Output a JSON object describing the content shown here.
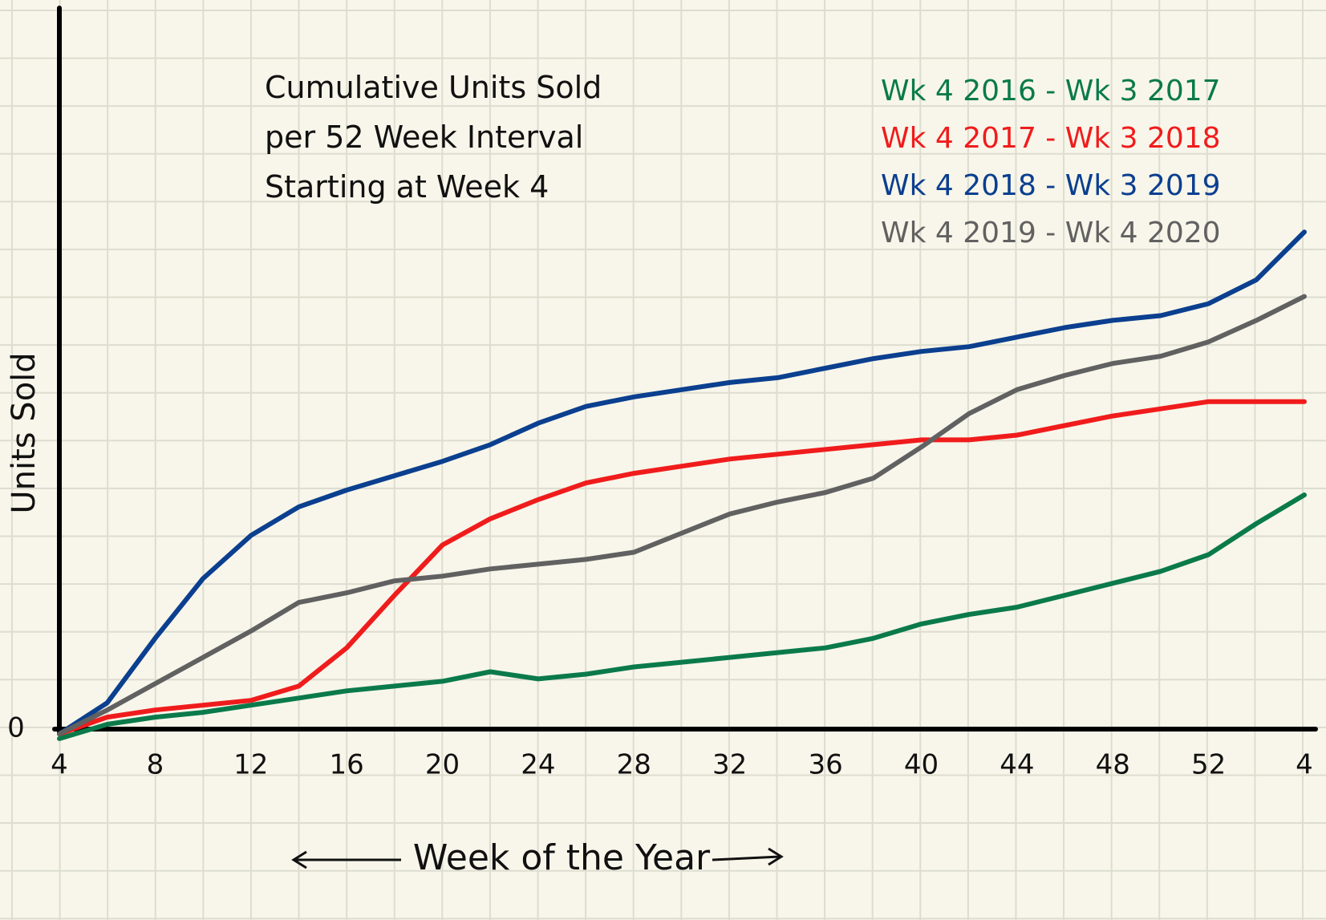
{
  "chart_data": {
    "type": "line",
    "title": "Cumulative Units Sold per 52 Week Interval Starting at Week 4",
    "x_label": "Week of the Year",
    "y_label": "Units Sold",
    "categories": [
      "4",
      null,
      "8",
      null,
      "12",
      null,
      "16",
      null,
      "20",
      null,
      "24",
      null,
      "28",
      null,
      "32",
      null,
      "36",
      null,
      "40",
      null,
      "44",
      null,
      "48",
      null,
      "52",
      null,
      "4"
    ],
    "ylim": [
      0,
      15
    ],
    "yticks": [
      0
    ],
    "series": [
      {
        "name": "Wk 4 2016 - Wk 3 2017",
        "color": "#0b7a4b",
        "values": [
          -0.2,
          0.1,
          0.25,
          0.35,
          0.5,
          0.65,
          0.8,
          0.9,
          1.0,
          1.2,
          1.05,
          1.15,
          1.3,
          1.4,
          1.5,
          1.6,
          1.7,
          1.9,
          2.2,
          2.4,
          2.55,
          2.8,
          3.05,
          3.3,
          3.65,
          4.3,
          4.9
        ]
      },
      {
        "name": "Wk 4 2017 - Wk 3 2018",
        "color": "#f01c1c",
        "values": [
          -0.1,
          0.25,
          0.4,
          0.5,
          0.6,
          0.9,
          1.7,
          2.8,
          3.85,
          4.4,
          4.8,
          5.15,
          5.35,
          5.5,
          5.65,
          5.75,
          5.85,
          5.95,
          6.05,
          6.05,
          6.15,
          6.35,
          6.55,
          6.7,
          6.85,
          6.85,
          6.85
        ]
      },
      {
        "name": "Wk 4 2018 - Wk 3 2019",
        "color": "#0b3f8f",
        "values": [
          -0.1,
          0.55,
          1.9,
          3.15,
          4.05,
          4.65,
          5.0,
          5.3,
          5.6,
          5.95,
          6.4,
          6.75,
          6.95,
          7.1,
          7.25,
          7.35,
          7.55,
          7.75,
          7.9,
          8.0,
          8.2,
          8.4,
          8.55,
          8.65,
          8.9,
          9.4,
          10.4
        ]
      },
      {
        "name": "Wk 4 2019 - Wk 4 2020",
        "color": "#616161",
        "values": [
          -0.1,
          0.4,
          0.95,
          1.5,
          2.05,
          2.65,
          2.85,
          3.1,
          3.2,
          3.35,
          3.45,
          3.55,
          3.7,
          4.1,
          4.5,
          4.75,
          4.95,
          5.25,
          5.9,
          6.6,
          7.1,
          7.4,
          7.65,
          7.8,
          8.1,
          8.55,
          9.05
        ]
      }
    ]
  }
}
